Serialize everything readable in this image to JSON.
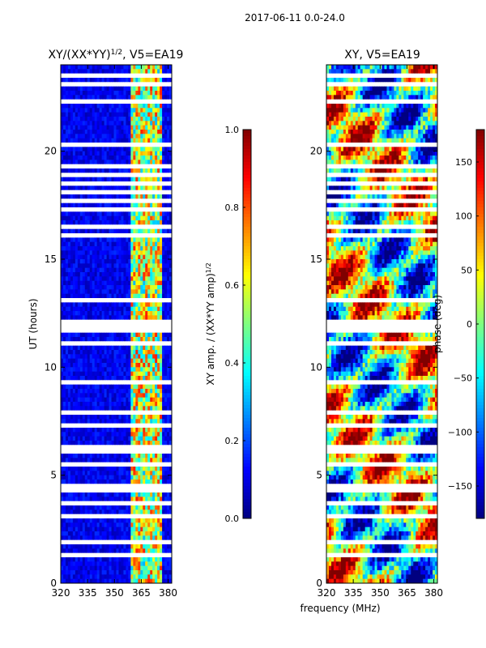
{
  "suptitle": "2017-06-11 0.0-24.0",
  "left_title_main": "XY/(XX*YY)",
  "left_title_exp": "1/2",
  "left_title_suffix": ", V5=EA19",
  "right_title": "XY, V5=EA19",
  "colors": {
    "low": "#00008f",
    "mid": "#7fff7f",
    "high": "#7f0000",
    "gap": "#ffffff"
  },
  "chart_data": [
    {
      "type": "heatmap",
      "name": "normalized-amplitude",
      "title": "XY/(XX*YY)^1/2, V5=EA19",
      "xlabel": "frequency (MHz)",
      "ylabel": "UT (hours)",
      "xlim": [
        320,
        382
      ],
      "ylim": [
        0,
        24
      ],
      "xticks": [
        320,
        335,
        350,
        365,
        380
      ],
      "yticks": [
        0,
        5,
        10,
        15,
        20
      ],
      "colorbar": {
        "label": "XY amp. / (XX*YY amp)",
        "label_exp": "1/2",
        "range": [
          0.0,
          1.0
        ],
        "ticks": [
          "0.0",
          "0.2",
          "0.4",
          "0.6",
          "0.8",
          "1.0"
        ],
        "colormap": "jet"
      },
      "rfi_band_mhz": [
        359,
        377
      ],
      "background_level": 0.05
    },
    {
      "type": "heatmap",
      "name": "phase",
      "title": "XY, V5=EA19",
      "xlabel": "frequency (MHz)",
      "ylabel": "",
      "xlim": [
        320,
        382
      ],
      "ylim": [
        0,
        24
      ],
      "xticks": [
        320,
        335,
        350,
        365,
        380
      ],
      "yticks": [
        0,
        5,
        10,
        15,
        20
      ],
      "colorbar": {
        "label": "phase (deg)",
        "range": [
          -180,
          180
        ],
        "ticks": [
          "−150",
          "−100",
          "−50",
          "0",
          "50",
          "100",
          "150"
        ],
        "colormap": "jet"
      }
    }
  ],
  "gaps_hours": [
    [
      0.25,
      0.3
    ],
    [
      0.72,
      0.75
    ],
    [
      1.3,
      1.4
    ],
    [
      1.85,
      1.9
    ],
    [
      2.7,
      2.78
    ],
    [
      3.1,
      3.18
    ],
    [
      3.35,
      3.42
    ],
    [
      3.55,
      3.85
    ],
    [
      4.15,
      4.55
    ],
    [
      4.9,
      5.05
    ],
    [
      5.2,
      5.28
    ],
    [
      5.45,
      5.55
    ],
    [
      5.9,
      6.45
    ],
    [
      6.75,
      6.8
    ],
    [
      7.3,
      7.35
    ],
    [
      7.85,
      7.9
    ],
    [
      8.35,
      8.4
    ],
    [
      8.8,
      8.85
    ],
    [
      9.3,
      9.35
    ],
    [
      10.2,
      10.25
    ],
    [
      11.0,
      11.15
    ],
    [
      11.55,
      12.15
    ],
    [
      12.6,
      12.65
    ],
    [
      13.05,
      13.15
    ],
    [
      13.55,
      13.6
    ],
    [
      13.95,
      14.0
    ],
    [
      14.4,
      14.45
    ],
    [
      15.6,
      15.65
    ],
    [
      16.05,
      16.1
    ],
    [
      16.4,
      16.6
    ],
    [
      17.0,
      17.05
    ],
    [
      17.3,
      17.35
    ],
    [
      17.65,
      17.7
    ],
    [
      18.05,
      18.12
    ],
    [
      18.5,
      18.55
    ],
    [
      18.85,
      18.9
    ],
    [
      19.25,
      19.35
    ],
    [
      19.55,
      19.6
    ],
    [
      20.3,
      20.35
    ],
    [
      20.75,
      20.8
    ],
    [
      21.2,
      21.25
    ],
    [
      21.6,
      21.65
    ],
    [
      22.0,
      22.05
    ],
    [
      22.3,
      22.35
    ],
    [
      22.55,
      22.6
    ],
    [
      23.05,
      23.1
    ],
    [
      23.5,
      23.6
    ]
  ]
}
